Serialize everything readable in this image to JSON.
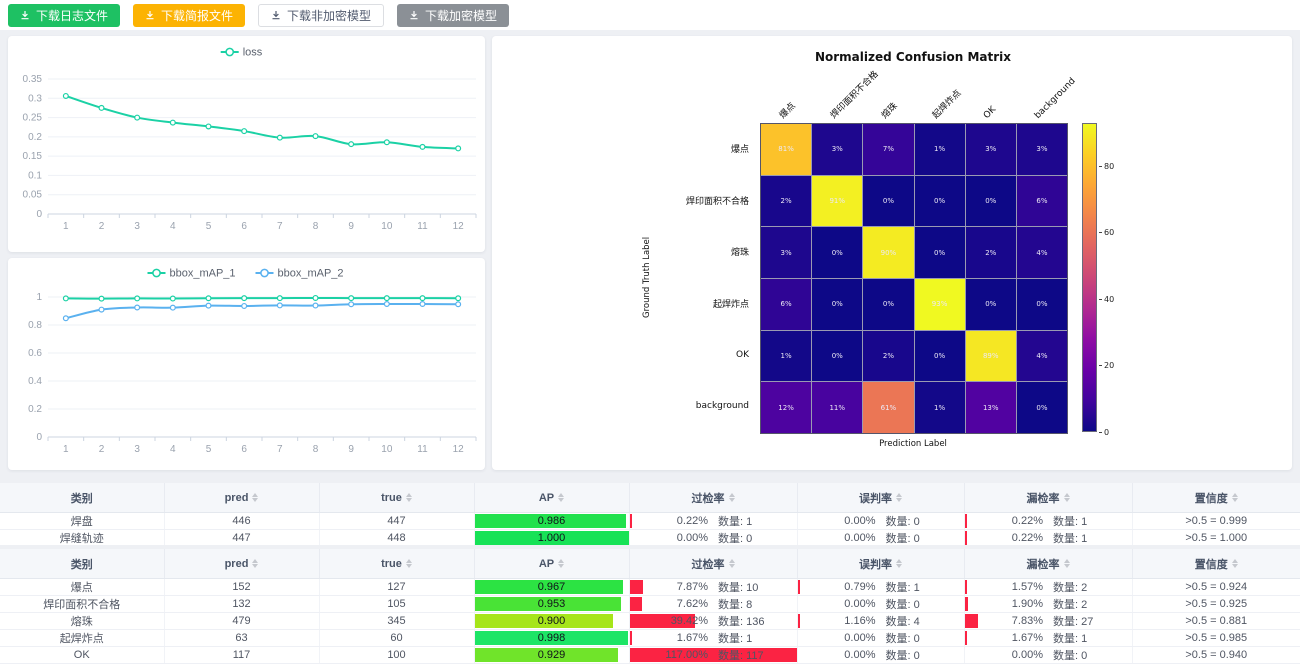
{
  "toolbar": {
    "buttons": [
      {
        "id": "download-log",
        "label": "下载日志文件",
        "color": "#1ec163",
        "text_color": "#ffffff"
      },
      {
        "id": "download-brief",
        "label": "下载简报文件",
        "color": "#fcb303",
        "text_color": "#ffffff"
      },
      {
        "id": "download-plain-model",
        "label": "下载非加密模型",
        "color": "#ffffff",
        "text_color": "#515a6e",
        "border": "#dcdee2"
      },
      {
        "id": "download-encrypted-model",
        "label": "下载加密模型",
        "color": "#8b9096",
        "text_color": "#ffffff"
      }
    ]
  },
  "chart_data": [
    {
      "type": "line",
      "x": [
        1,
        2,
        3,
        4,
        5,
        6,
        7,
        8,
        9,
        10,
        11,
        12
      ],
      "series": [
        {
          "name": "loss",
          "color": "#1bd1a5",
          "values": [
            0.306,
            0.275,
            0.25,
            0.237,
            0.227,
            0.215,
            0.198,
            0.202,
            0.181,
            0.186,
            0.174,
            0.17
          ]
        }
      ],
      "ylim": [
        0,
        0.35
      ],
      "yticks": [
        0,
        0.05,
        0.1,
        0.15,
        0.2,
        0.25,
        0.3,
        0.35
      ],
      "legend_position": "top-center",
      "grid": true
    },
    {
      "type": "line",
      "x": [
        1,
        2,
        3,
        4,
        5,
        6,
        7,
        8,
        9,
        10,
        11,
        12
      ],
      "series": [
        {
          "name": "bbox_mAP_1",
          "color": "#1bd1a5",
          "values": [
            0.99,
            0.988,
            0.99,
            0.989,
            0.991,
            0.992,
            0.992,
            0.993,
            0.992,
            0.992,
            0.992,
            0.991
          ]
        },
        {
          "name": "bbox_mAP_2",
          "color": "#5ab1ef",
          "values": [
            0.848,
            0.91,
            0.925,
            0.924,
            0.938,
            0.936,
            0.94,
            0.939,
            0.948,
            0.95,
            0.95,
            0.948
          ]
        }
      ],
      "ylim": [
        0,
        1
      ],
      "yticks": [
        0,
        0.2,
        0.4,
        0.6,
        0.8,
        1
      ],
      "legend_position": "top-center",
      "grid": true
    },
    {
      "type": "heatmap",
      "title": "Normalized Confusion Matrix",
      "xlabel": "Prediction Label",
      "ylabel": "Ground Truth Label",
      "labels": [
        "爆点",
        "焊印面积不合格",
        "熔珠",
        "起焊炸点",
        "OK",
        "background"
      ],
      "values": [
        [
          81,
          3,
          7,
          1,
          3,
          3
        ],
        [
          2,
          91,
          0,
          0,
          0,
          6
        ],
        [
          3,
          0,
          90,
          0,
          2,
          4
        ],
        [
          6,
          0,
          0,
          93,
          0,
          0
        ],
        [
          1,
          0,
          2,
          0,
          89,
          4
        ],
        [
          12,
          11,
          61,
          1,
          13,
          0
        ]
      ],
      "value_suffix": "%",
      "vmax": 93,
      "colorbar_ticks": [
        0,
        20,
        40,
        60,
        80
      ],
      "colormap": "plasma",
      "legend_position": "colorbar-right"
    }
  ],
  "tables": [
    {
      "headers": [
        "类别",
        "pred",
        "true",
        "AP",
        "过检率",
        "误判率",
        "漏检率",
        "置信度"
      ],
      "sortable": [
        false,
        true,
        true,
        true,
        true,
        true,
        true,
        true
      ],
      "count_label": "数量:",
      "rate_bar_color": "#fb2343",
      "rows": [
        {
          "category": "焊盘",
          "pred": "446",
          "true": "447",
          "ap": "0.986",
          "ap_pct": 98.6,
          "ap_color": "#21e14d",
          "over_rate": "0.22%",
          "over_pct": 0.22,
          "over_count": "1",
          "mis_rate": "0.00%",
          "mis_pct": 0,
          "mis_count": "0",
          "miss_rate": "0.22%",
          "miss_pct": 0.22,
          "miss_count": "1",
          "confidence": ">0.5 = 0.999"
        },
        {
          "category": "焊缝轨迹",
          "pred": "447",
          "true": "448",
          "ap": "1.000",
          "ap_pct": 100,
          "ap_color": "#17e256",
          "over_rate": "0.00%",
          "over_pct": 0,
          "over_count": "0",
          "mis_rate": "0.00%",
          "mis_pct": 0,
          "mis_count": "0",
          "miss_rate": "0.22%",
          "miss_pct": 0.22,
          "miss_count": "1",
          "confidence": ">0.5 = 1.000"
        }
      ]
    },
    {
      "headers": [
        "类别",
        "pred",
        "true",
        "AP",
        "过检率",
        "误判率",
        "漏检率",
        "置信度"
      ],
      "sortable": [
        false,
        true,
        true,
        true,
        true,
        true,
        true,
        true
      ],
      "count_label": "数量:",
      "rate_bar_color": "#fb2343",
      "rows": [
        {
          "category": "爆点",
          "pred": "152",
          "true": "127",
          "ap": "0.967",
          "ap_pct": 96.7,
          "ap_color": "#2ce343",
          "over_rate": "7.87%",
          "over_pct": 7.87,
          "over_count": "10",
          "mis_rate": "0.79%",
          "mis_pct": 0.79,
          "mis_count": "1",
          "miss_rate": "1.57%",
          "miss_pct": 1.57,
          "miss_count": "2",
          "confidence": ">0.5 = 0.924"
        },
        {
          "category": "焊印面积不合格",
          "pred": "132",
          "true": "105",
          "ap": "0.953",
          "ap_pct": 95.3,
          "ap_color": "#49e336",
          "over_rate": "7.62%",
          "over_pct": 7.62,
          "over_count": "8",
          "mis_rate": "0.00%",
          "mis_pct": 0,
          "mis_count": "0",
          "miss_rate": "1.90%",
          "miss_pct": 1.9,
          "miss_count": "2",
          "confidence": ">0.5 = 0.925"
        },
        {
          "category": "熔珠",
          "pred": "479",
          "true": "345",
          "ap": "0.900",
          "ap_pct": 90,
          "ap_color": "#a6e51a",
          "over_rate": "39.42%",
          "over_pct": 39.42,
          "over_count": "136",
          "mis_rate": "1.16%",
          "mis_pct": 1.16,
          "mis_count": "4",
          "miss_rate": "7.83%",
          "miss_pct": 7.83,
          "miss_count": "27",
          "confidence": ">0.5 = 0.881"
        },
        {
          "category": "起焊炸点",
          "pred": "63",
          "true": "60",
          "ap": "0.998",
          "ap_pct": 99.8,
          "ap_color": "#1de566",
          "over_rate": "1.67%",
          "over_pct": 1.67,
          "over_count": "1",
          "mis_rate": "0.00%",
          "mis_pct": 0,
          "mis_count": "0",
          "miss_rate": "1.67%",
          "miss_pct": 1.67,
          "miss_count": "1",
          "confidence": ">0.5 = 0.985"
        },
        {
          "category": "OK",
          "pred": "117",
          "true": "100",
          "ap": "0.929",
          "ap_pct": 92.9,
          "ap_color": "#70e42a",
          "over_rate": "117.00%",
          "over_pct": 117,
          "over_count": "117",
          "mis_rate": "0.00%",
          "mis_pct": 0,
          "mis_count": "0",
          "miss_rate": "0.00%",
          "miss_pct": 0,
          "miss_count": "0",
          "confidence": ">0.5 = 0.940"
        }
      ]
    }
  ]
}
